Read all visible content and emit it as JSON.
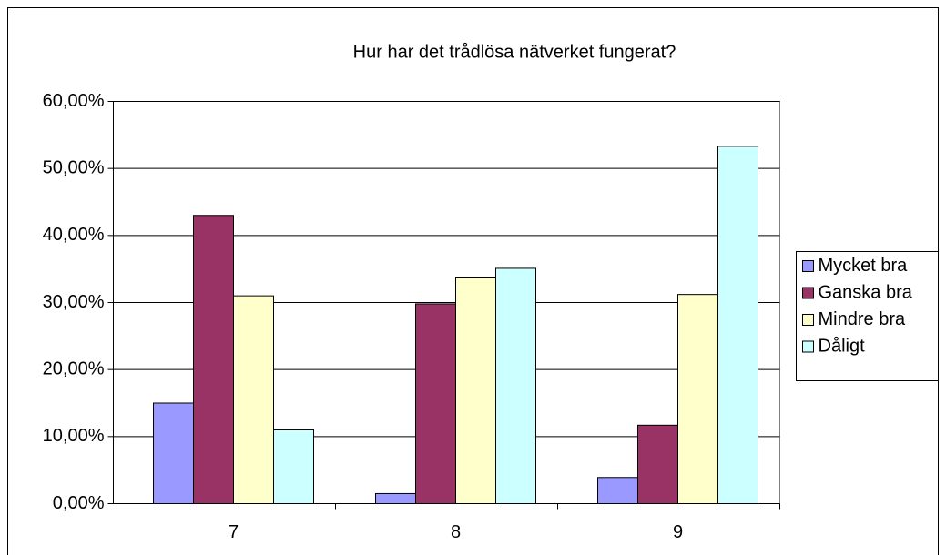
{
  "chart_data": {
    "type": "bar",
    "title": "Hur har det trådlösa nätverket fungerat?",
    "categories": [
      "7",
      "8",
      "9"
    ],
    "series": [
      {
        "name": "Mycket bra",
        "color": "#9999ff",
        "values": [
          15,
          1.5,
          3.9
        ]
      },
      {
        "name": "Ganska bra",
        "color": "#993366",
        "values": [
          43,
          29.8,
          11.7
        ]
      },
      {
        "name": "Mindre bra",
        "color": "#ffffcc",
        "values": [
          31,
          33.8,
          31.2
        ]
      },
      {
        "name": "Dåligt",
        "color": "#ccffff",
        "values": [
          11,
          35.1,
          53.3
        ]
      }
    ],
    "ylim": [
      0,
      60
    ],
    "yticks": [
      {
        "value": 0,
        "label": "0,00%"
      },
      {
        "value": 10,
        "label": "10,00%"
      },
      {
        "value": 20,
        "label": "20,00%"
      },
      {
        "value": 30,
        "label": "30,00%"
      },
      {
        "value": 40,
        "label": "40,00%"
      },
      {
        "value": 50,
        "label": "50,00%"
      },
      {
        "value": 60,
        "label": "60,00%"
      }
    ],
    "grid": true,
    "legend": "right"
  }
}
